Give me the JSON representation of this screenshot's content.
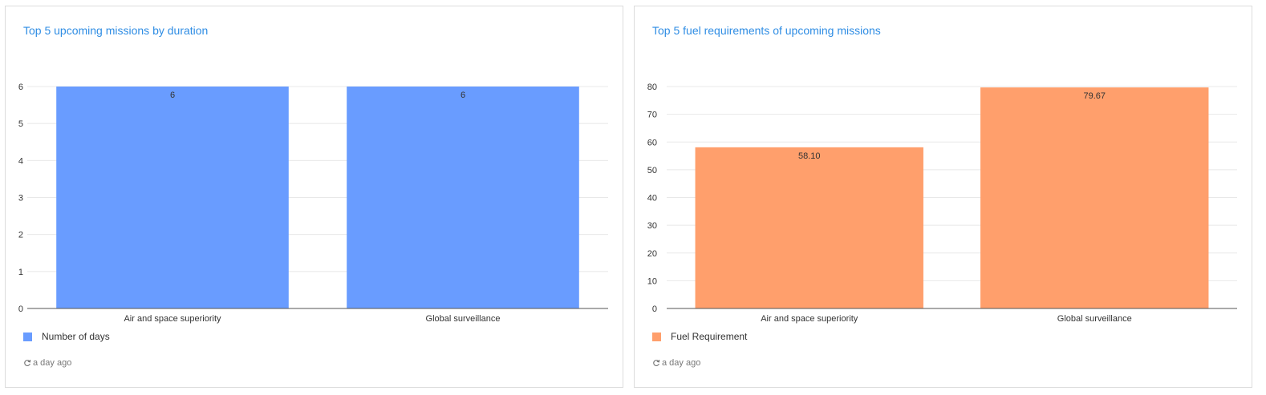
{
  "colors": {
    "title": "#2f8de4",
    "grid": "#e8e8e8",
    "axis": "#555555"
  },
  "cards": [
    {
      "title": "Top 5 upcoming missions by duration",
      "legend_color": "#699cff",
      "updated": "a day ago",
      "refresh_icon": "refresh-icon"
    },
    {
      "title": "Top 5 fuel requirements of upcoming missions",
      "legend_color": "#ff9f6c",
      "updated": "a day ago",
      "refresh_icon": "refresh-icon"
    }
  ],
  "chart_data": [
    {
      "type": "bar",
      "title": "Top 5 upcoming missions by duration",
      "categories": [
        "Air and space superiority",
        "Global surveillance"
      ],
      "series": [
        {
          "name": "Number of days",
          "values": [
            6,
            6
          ],
          "labels": [
            "6",
            "6"
          ],
          "color": "#699cff"
        }
      ],
      "ylim": [
        0,
        6
      ],
      "yticks": [
        0,
        1,
        2,
        3,
        4,
        5,
        6
      ],
      "grid": true,
      "legend": "bottom-left"
    },
    {
      "type": "bar",
      "title": "Top 5 fuel requirements of upcoming missions",
      "categories": [
        "Air and space superiority",
        "Global surveillance"
      ],
      "series": [
        {
          "name": "Fuel Requirement",
          "values": [
            58.1,
            79.67
          ],
          "labels": [
            "58.10",
            "79.67"
          ],
          "color": "#ff9f6c"
        }
      ],
      "ylim": [
        0,
        80
      ],
      "yticks": [
        0,
        10,
        20,
        30,
        40,
        50,
        60,
        70,
        80
      ],
      "grid": true,
      "legend": "bottom-left"
    }
  ]
}
